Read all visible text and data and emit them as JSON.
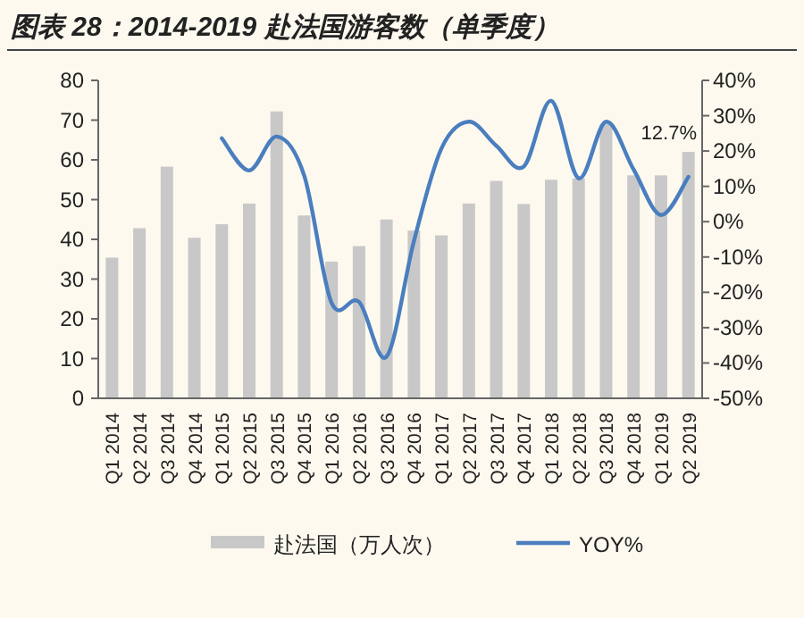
{
  "chart_data": {
    "type": "bar",
    "title": "图表 28：2014-2019 赴法国游客数（单季度）",
    "categories": [
      "Q1 2014",
      "Q2 2014",
      "Q3 2014",
      "Q4 2014",
      "Q1 2015",
      "Q2 2015",
      "Q3 2015",
      "Q4 2015",
      "Q1 2016",
      "Q2 2016",
      "Q3 2016",
      "Q4 2016",
      "Q1 2017",
      "Q2 2017",
      "Q3 2017",
      "Q4 2017",
      "Q1 2018",
      "Q2 2018",
      "Q3 2018",
      "Q4 2018",
      "Q1 2019",
      "Q2 2019"
    ],
    "series": [
      {
        "name": "赴法国（万人次）",
        "color": "#c8c8c8",
        "values": [
          35.4,
          42.8,
          58.3,
          40.4,
          43.8,
          49.0,
          72.2,
          46.0,
          34.4,
          38.3,
          45.0,
          42.2,
          41.0,
          49.0,
          54.7,
          48.9,
          55.0,
          55.3,
          69.1,
          56.1,
          56.1,
          62.0
        ]
      },
      {
        "name": "YOY%",
        "type": "line",
        "axis": "y2",
        "color": "#4a7ebf",
        "values": [
          null,
          null,
          null,
          null,
          23.6,
          14.5,
          24.1,
          13.1,
          -23.0,
          -22.7,
          -38.2,
          -5.5,
          20.7,
          28.3,
          21.5,
          15.6,
          34.2,
          12.3,
          28.3,
          14.8,
          1.9,
          12.7
        ],
        "value_labels": [
          null,
          null,
          null,
          null,
          null,
          null,
          null,
          null,
          null,
          null,
          null,
          null,
          null,
          null,
          null,
          null,
          null,
          null,
          null,
          null,
          null,
          "12.7%"
        ]
      }
    ],
    "ylim": [
      0,
      80
    ],
    "yticks": [
      0,
      10,
      20,
      30,
      40,
      50,
      60,
      70,
      80
    ],
    "y2lim": [
      -50,
      40
    ],
    "y2ticks": [
      {
        "value": -50,
        "label": "-50%"
      },
      {
        "value": -40,
        "label": "-40%"
      },
      {
        "value": -30,
        "label": "-30%"
      },
      {
        "value": -20,
        "label": "-20%"
      },
      {
        "value": -10,
        "label": "-10%"
      },
      {
        "value": 0,
        "label": "0%"
      },
      {
        "value": 10,
        "label": "10%"
      },
      {
        "value": 20,
        "label": "20%"
      },
      {
        "value": 30,
        "label": "30%"
      },
      {
        "value": 40,
        "label": "40%"
      }
    ],
    "legend": "bottom"
  }
}
